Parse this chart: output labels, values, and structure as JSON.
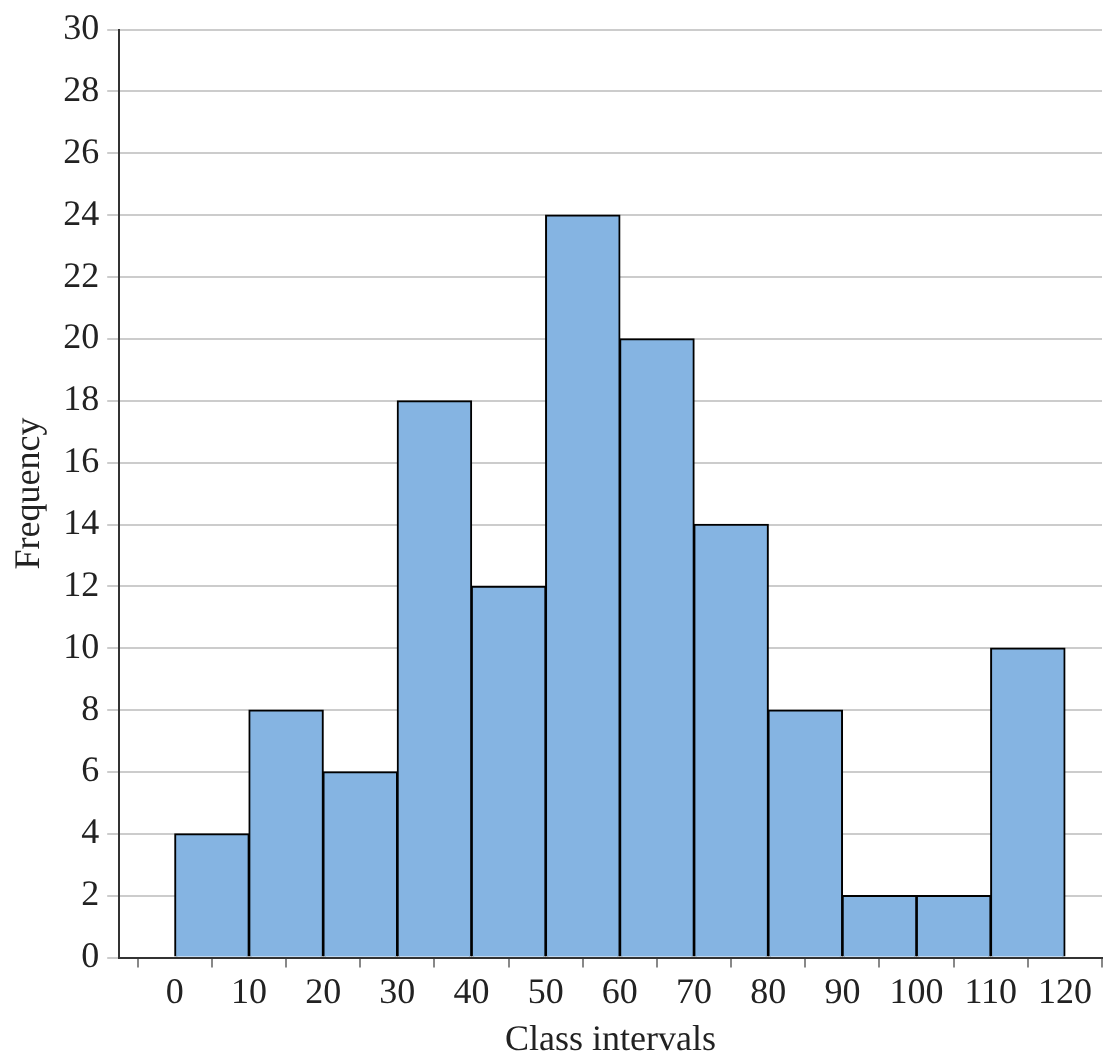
{
  "chart_data": {
    "type": "histogram",
    "xlabel": "Class intervals",
    "ylabel": "Frequency",
    "bins": [
      0,
      10,
      20,
      30,
      40,
      50,
      60,
      70,
      80,
      90,
      100,
      110,
      120
    ],
    "values": [
      4,
      8,
      6,
      18,
      12,
      24,
      20,
      14,
      8,
      2,
      2,
      10
    ],
    "color": "#85b4e2",
    "xlim": [
      -7.5,
      125
    ],
    "xticks": [
      0,
      10,
      20,
      30,
      40,
      50,
      60,
      70,
      80,
      90,
      100,
      110,
      120
    ],
    "ylim": [
      0,
      30
    ],
    "yticks": [
      0,
      2,
      4,
      6,
      8,
      10,
      12,
      14,
      16,
      18,
      20,
      22,
      24,
      26,
      28,
      30
    ],
    "grid": "y",
    "legend": false
  }
}
